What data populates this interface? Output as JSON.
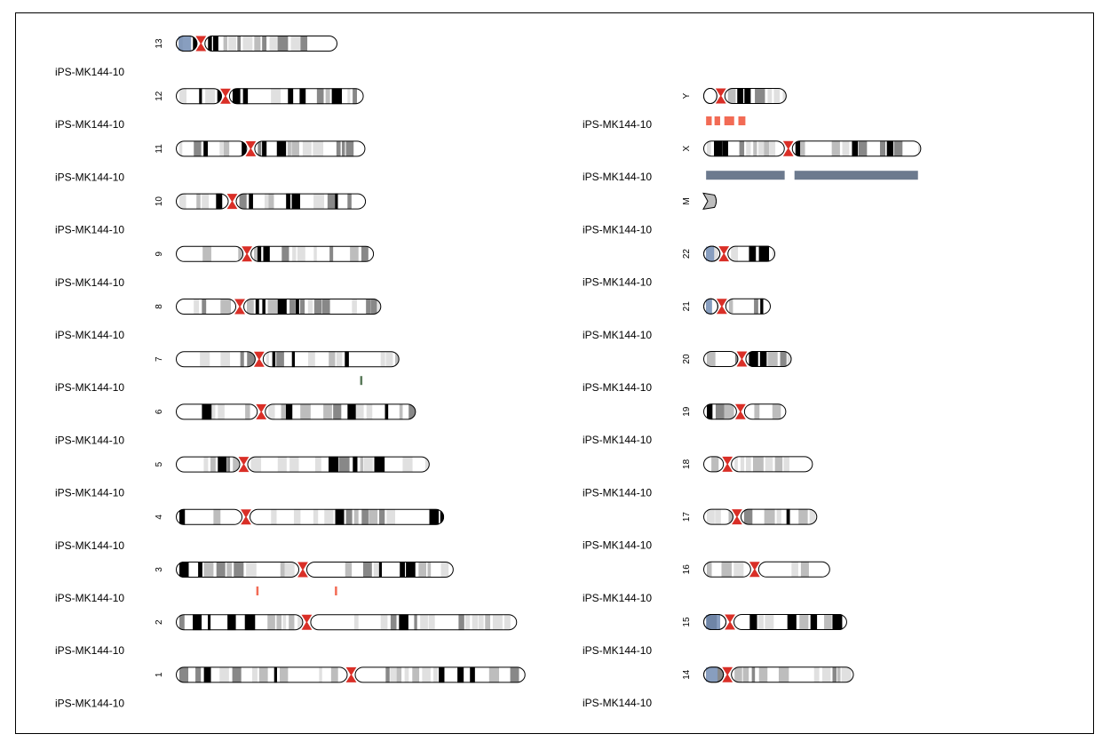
{
  "chart_data": {
    "type": "karyogram",
    "colors": {
      "outline": "#000000",
      "centromere": "#d92f27",
      "stalk": "#7b93b8",
      "band_shades": [
        "#ffffff",
        "#e0e0e0",
        "#bdbdbd",
        "#888888",
        "#000000"
      ],
      "track_gain": "#f26b55",
      "track_loss": "#5a7a5a",
      "track_segment": "#6c7a8e"
    },
    "left_column": [
      {
        "chrom": "13",
        "sample": "iPS-MK144-10",
        "length": 115.2,
        "centromere": 17.9,
        "stalk": true,
        "markers": []
      },
      {
        "chrom": "12",
        "sample": "iPS-MK144-10",
        "length": 133.9,
        "centromere": 35.4,
        "stalk": false,
        "markers": []
      },
      {
        "chrom": "11",
        "sample": "iPS-MK144-10",
        "length": 135.1,
        "centromere": 53.4,
        "stalk": false,
        "markers": []
      },
      {
        "chrom": "10",
        "sample": "iPS-MK144-10",
        "length": 135.5,
        "centromere": 40.2,
        "stalk": false,
        "markers": []
      },
      {
        "chrom": "9",
        "sample": "iPS-MK144-10",
        "length": 141.2,
        "centromere": 50.7,
        "stalk": false,
        "markers": []
      },
      {
        "chrom": "8",
        "sample": "iPS-MK144-10",
        "length": 146.4,
        "centromere": 45.6,
        "stalk": false,
        "markers": []
      },
      {
        "chrom": "7",
        "sample": "iPS-MK144-10",
        "length": 159.3,
        "centromere": 59.4,
        "stalk": false,
        "markers": [
          {
            "pos": 132.0,
            "kind": "loss"
          }
        ]
      },
      {
        "chrom": "6",
        "sample": "iPS-MK144-10",
        "length": 171.1,
        "centromere": 60.9,
        "stalk": false,
        "markers": []
      },
      {
        "chrom": "5",
        "sample": "iPS-MK144-10",
        "length": 180.9,
        "centromere": 48.4,
        "stalk": false,
        "markers": []
      },
      {
        "chrom": "4",
        "sample": "iPS-MK144-10",
        "length": 191.2,
        "centromere": 50.0,
        "stalk": false,
        "markers": []
      },
      {
        "chrom": "3",
        "sample": "iPS-MK144-10",
        "length": 198.0,
        "centromere": 90.5,
        "stalk": false,
        "markers": [
          {
            "pos": 58.0,
            "kind": "gain"
          },
          {
            "pos": 114.0,
            "kind": "gain"
          }
        ]
      },
      {
        "chrom": "2",
        "sample": "iPS-MK144-10",
        "length": 243.2,
        "centromere": 93.3,
        "stalk": false,
        "markers": []
      },
      {
        "chrom": "1",
        "sample": "iPS-MK144-10",
        "length": 249.2,
        "centromere": 125.0,
        "stalk": false,
        "markers": []
      }
    ],
    "right_column": [
      {
        "chrom": "Y",
        "sample": "iPS-MK144-10",
        "length": 59.4,
        "centromere": 12.5,
        "stalk": false,
        "stalk_blank": true,
        "markers": [],
        "dashes": [
          [
            2,
            6
          ],
          [
            8,
            12
          ],
          [
            15,
            22
          ],
          [
            25,
            30
          ]
        ]
      },
      {
        "chrom": "X",
        "sample": "iPS-MK144-10",
        "length": 155.3,
        "centromere": 60.6,
        "stalk": false,
        "markers": [],
        "segments": [
          [
            2,
            58
          ],
          [
            65,
            153
          ]
        ]
      },
      {
        "chrom": "M",
        "sample": "iPS-MK144-10",
        "length": 8.0,
        "centromere": 1.0,
        "stalk": false,
        "markers": [],
        "mito": true
      },
      {
        "chrom": "22",
        "sample": "iPS-MK144-10",
        "length": 51.3,
        "centromere": 14.7,
        "stalk": true,
        "markers": []
      },
      {
        "chrom": "21",
        "sample": "iPS-MK144-10",
        "length": 48.1,
        "centromere": 13.2,
        "stalk": true,
        "markers": []
      },
      {
        "chrom": "20",
        "sample": "iPS-MK144-10",
        "length": 63.0,
        "centromere": 27.5,
        "stalk": false,
        "markers": []
      },
      {
        "chrom": "19",
        "sample": "iPS-MK144-10",
        "length": 59.1,
        "centromere": 26.5,
        "stalk": false,
        "markers": []
      },
      {
        "chrom": "18",
        "sample": "iPS-MK144-10",
        "length": 78.1,
        "centromere": 17.2,
        "stalk": false,
        "markers": []
      },
      {
        "chrom": "17",
        "sample": "iPS-MK144-10",
        "length": 81.2,
        "centromere": 24.0,
        "stalk": false,
        "markers": []
      },
      {
        "chrom": "16",
        "sample": "iPS-MK144-10",
        "length": 90.4,
        "centromere": 36.6,
        "stalk": false,
        "markers": []
      },
      {
        "chrom": "15",
        "sample": "iPS-MK144-10",
        "length": 102.5,
        "centromere": 19.0,
        "stalk": true,
        "markers": []
      },
      {
        "chrom": "14",
        "sample": "iPS-MK144-10",
        "length": 107.3,
        "centromere": 17.2,
        "stalk": true,
        "markers": []
      }
    ]
  }
}
